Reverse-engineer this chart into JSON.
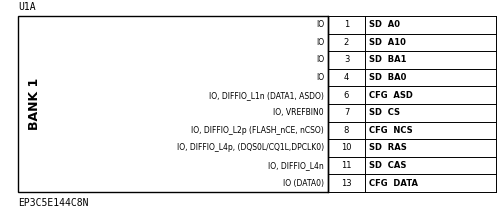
{
  "component_label": "U1A",
  "part_number": "EP3C5E144C8N",
  "bank_label": "BANK 1",
  "bg_color": "#ffffff",
  "box_color": "#000000",
  "text_color": "#000000",
  "left_pins": [
    {
      "label": "IO",
      "row": 0
    },
    {
      "label": "IO",
      "row": 1
    },
    {
      "label": "IO",
      "row": 2
    },
    {
      "label": "IO",
      "row": 3
    },
    {
      "label": "IO, DIFFIO_L1n (DATA1, ASDO)",
      "row": 4
    },
    {
      "label": "IO, VREFBIN0",
      "row": 5
    },
    {
      "label": "IO, DIFFIO_L2p (FLASH_nCE, nCSO)",
      "row": 6
    },
    {
      "label": "IO, DIFFIO_L4p, (DQS0L/CQ1L,DPCLK0)",
      "row": 7
    },
    {
      "label": "IO, DIFFIO_L4n",
      "row": 8
    },
    {
      "label": "IO (DATA0)",
      "row": 9
    }
  ],
  "right_pins": [
    {
      "num": "1",
      "sig": "SD  A0",
      "row": 0
    },
    {
      "num": "2",
      "sig": "SD  A10",
      "row": 1
    },
    {
      "num": "3",
      "sig": "SD  BA1",
      "row": 2
    },
    {
      "num": "4",
      "sig": "SD  BA0",
      "row": 3
    },
    {
      "num": "6",
      "sig": "CFG  ASD",
      "row": 4
    },
    {
      "num": "7",
      "sig": "SD  CS",
      "row": 5
    },
    {
      "num": "8",
      "sig": "CFG  NCS",
      "row": 6
    },
    {
      "num": "10",
      "sig": "SD  RAS",
      "row": 7
    },
    {
      "num": "11",
      "sig": "SD  CAS",
      "row": 8
    },
    {
      "num": "13",
      "sig": "CFG  DATA",
      "row": 9
    }
  ]
}
